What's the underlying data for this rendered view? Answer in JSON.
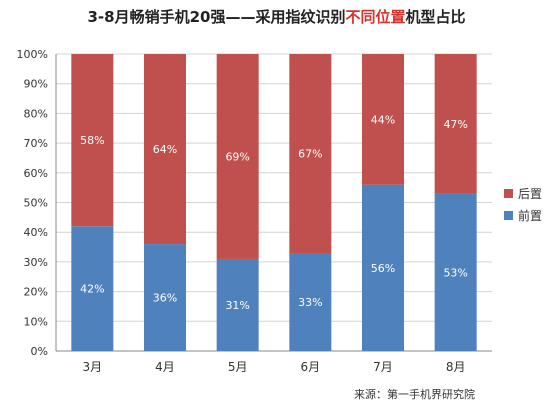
{
  "title": {
    "prefix": "3-8月畅销手机20强——采用指纹识别",
    "highlight": "不同位置",
    "suffix": "机型占比"
  },
  "source": "来源：第一手机界研究院",
  "colors": {
    "front": "#4f81bd",
    "rear": "#c0504d",
    "title_highlight": "#d9312b"
  },
  "chart_data": {
    "type": "bar",
    "stacked": true,
    "title": "3-8月畅销手机20强——采用指纹识别不同位置机型占比",
    "categories": [
      "3月",
      "4月",
      "5月",
      "6月",
      "7月",
      "8月"
    ],
    "series": [
      {
        "name": "前置",
        "values": [
          42,
          36,
          31,
          33,
          56,
          53
        ],
        "labels": [
          "42%",
          "36%",
          "31%",
          "33%",
          "56%",
          "53%"
        ]
      },
      {
        "name": "后置",
        "values": [
          58,
          64,
          69,
          67,
          44,
          47
        ],
        "labels": [
          "58%",
          "64%",
          "69%",
          "67%",
          "44%",
          "47%"
        ]
      }
    ],
    "ylim": [
      0,
      100
    ],
    "yticks": [
      "0%",
      "10%",
      "20%",
      "30%",
      "40%",
      "50%",
      "60%",
      "70%",
      "80%",
      "90%",
      "100%"
    ],
    "grid": true,
    "legend": "right",
    "legend_order": [
      "后置",
      "前置"
    ]
  }
}
